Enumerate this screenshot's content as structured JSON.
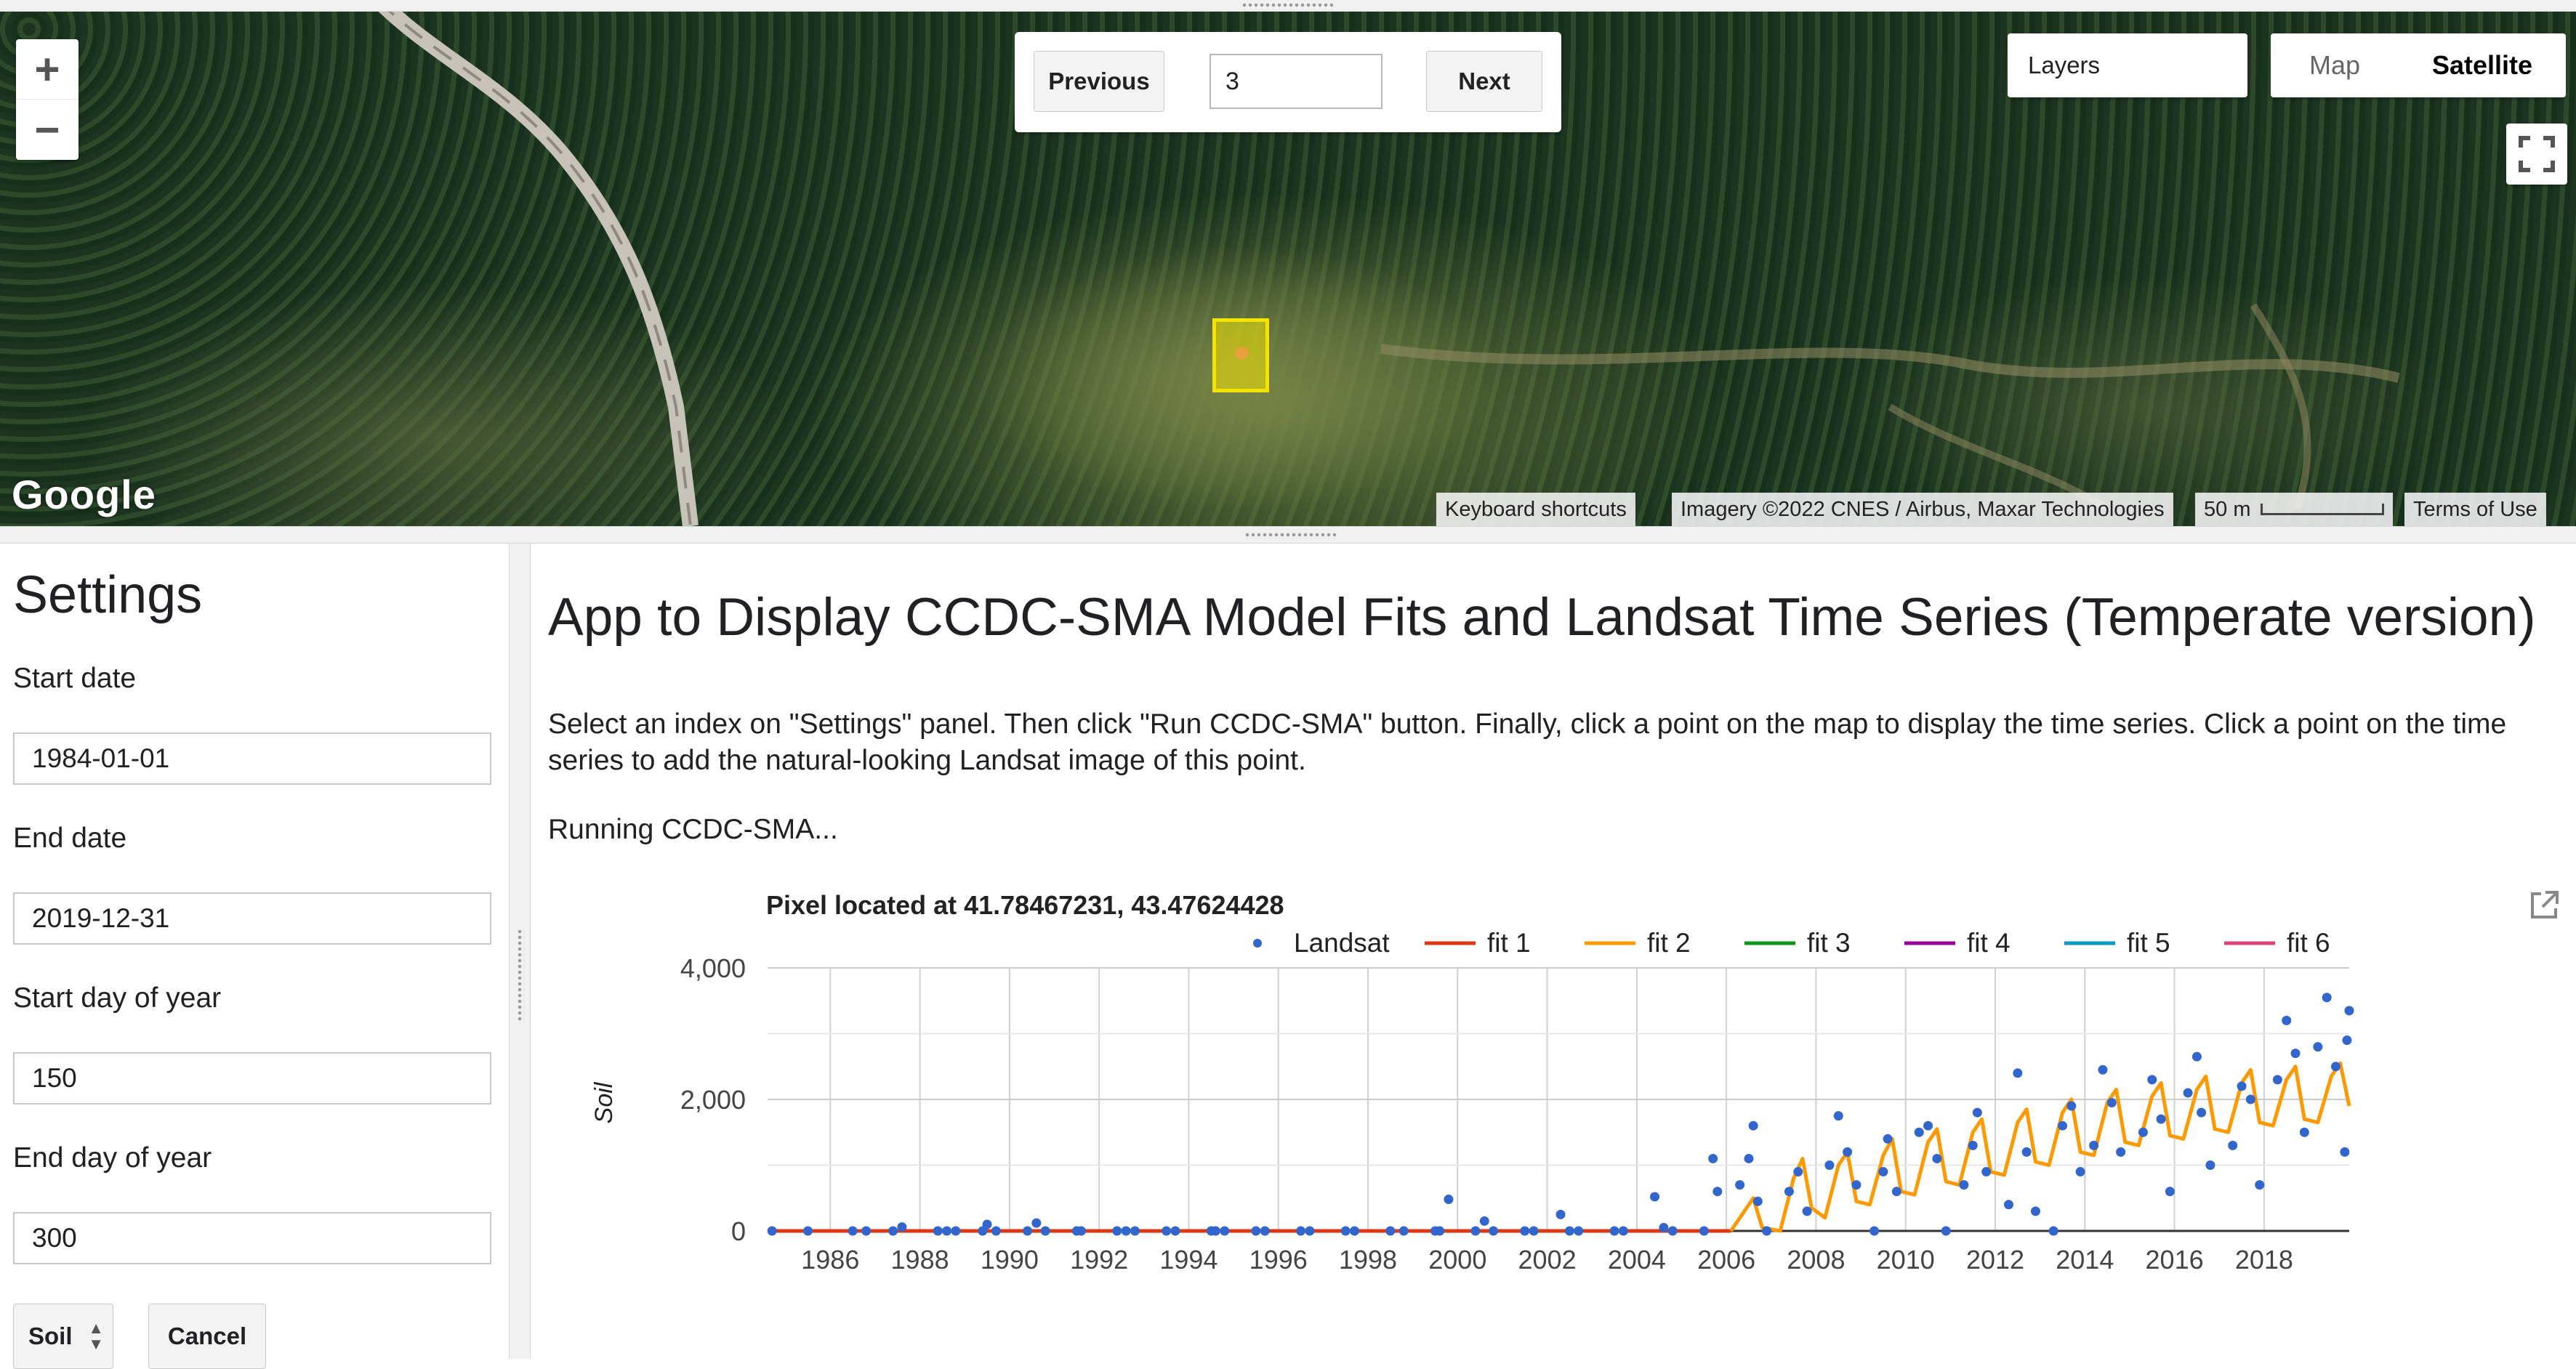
{
  "map": {
    "zoom_in": "+",
    "zoom_out": "−",
    "pager": {
      "previous_label": "Previous",
      "index_value": "3",
      "next_label": "Next"
    },
    "layers_label": "Layers",
    "map_type": {
      "map_label": "Map",
      "satellite_label": "Satellite"
    },
    "google_logo": "Google",
    "attribution": {
      "shortcuts": "Keyboard shortcuts",
      "imagery": "Imagery ©2022 CNES / Airbus, Maxar Technologies",
      "scale": "50 m",
      "terms": "Terms of Use"
    }
  },
  "settings": {
    "title": "Settings",
    "start_date_label": "Start date",
    "start_date_value": "1984-01-01",
    "end_date_label": "End date",
    "end_date_value": "2019-12-31",
    "start_doy_label": "Start day of year",
    "start_doy_value": "150",
    "end_doy_label": "End day of year",
    "end_doy_value": "300",
    "index_select": "Soil",
    "cancel_label": "Cancel"
  },
  "main": {
    "title": "App to Display CCDC-SMA Model Fits and Landsat Time Series (Temperate version)",
    "description": "Select an index on \"Settings\" panel. Then click \"Run CCDC-SMA\" button. Finally, click a point on the map to display the time series. Click a point on the time series to add the natural-looking Landsat image of this point.",
    "status": "Running CCDC-SMA..."
  },
  "chart_data": {
    "type": "scatter",
    "title": "Pixel located at 41.78467231, 43.47624428",
    "xlabel": "",
    "ylabel": "Soil",
    "xlim": [
      1984.6,
      2019.9
    ],
    "ylim": [
      0,
      4000
    ],
    "y_ticks": [
      0,
      2000,
      4000
    ],
    "y_tick_labels": [
      "0",
      "2,000",
      "4,000"
    ],
    "x_ticks": [
      1986,
      1988,
      1990,
      1992,
      1994,
      1996,
      1998,
      2000,
      2002,
      2004,
      2006,
      2008,
      2010,
      2012,
      2014,
      2016,
      2018
    ],
    "legend": [
      {
        "name": "Landsat",
        "color": "#3366cc",
        "marker": "dot"
      },
      {
        "name": "fit 1",
        "color": "#dc3912",
        "marker": "line"
      },
      {
        "name": "fit 2",
        "color": "#ff9900",
        "marker": "line"
      },
      {
        "name": "fit 3",
        "color": "#109618",
        "marker": "line"
      },
      {
        "name": "fit 4",
        "color": "#990099",
        "marker": "line"
      },
      {
        "name": "fit 5",
        "color": "#0099c6",
        "marker": "line"
      },
      {
        "name": "fit 6",
        "color": "#dd4477",
        "marker": "line"
      }
    ],
    "landsat_points": [
      [
        1984.7,
        0
      ],
      [
        1985.5,
        0
      ],
      [
        1986.5,
        0
      ],
      [
        1986.8,
        0
      ],
      [
        1987.4,
        0
      ],
      [
        1987.6,
        60
      ],
      [
        1988.4,
        0
      ],
      [
        1988.6,
        0
      ],
      [
        1988.8,
        0
      ],
      [
        1989.4,
        0
      ],
      [
        1989.5,
        100
      ],
      [
        1989.7,
        0
      ],
      [
        1990.4,
        0
      ],
      [
        1990.6,
        120
      ],
      [
        1990.8,
        0
      ],
      [
        1991.5,
        0
      ],
      [
        1991.6,
        0
      ],
      [
        1992.4,
        0
      ],
      [
        1992.6,
        0
      ],
      [
        1992.8,
        0
      ],
      [
        1993.5,
        0
      ],
      [
        1993.7,
        0
      ],
      [
        1994.5,
        0
      ],
      [
        1994.6,
        0
      ],
      [
        1994.8,
        0
      ],
      [
        1995.5,
        0
      ],
      [
        1995.7,
        0
      ],
      [
        1996.5,
        0
      ],
      [
        1996.7,
        0
      ],
      [
        1997.5,
        0
      ],
      [
        1997.7,
        0
      ],
      [
        1998.5,
        0
      ],
      [
        1998.8,
        0
      ],
      [
        1999.5,
        0
      ],
      [
        1999.6,
        0
      ],
      [
        1999.8,
        480
      ],
      [
        2000.4,
        0
      ],
      [
        2000.6,
        150
      ],
      [
        2000.8,
        0
      ],
      [
        2001.5,
        0
      ],
      [
        2001.7,
        0
      ],
      [
        2002.3,
        250
      ],
      [
        2002.5,
        0
      ],
      [
        2002.7,
        0
      ],
      [
        2003.5,
        0
      ],
      [
        2003.7,
        0
      ],
      [
        2004.4,
        520
      ],
      [
        2004.6,
        50
      ],
      [
        2004.8,
        0
      ],
      [
        2005.5,
        0
      ],
      [
        2005.7,
        1100
      ],
      [
        2005.8,
        600
      ],
      [
        2006.3,
        700
      ],
      [
        2006.5,
        1100
      ],
      [
        2006.6,
        1600
      ],
      [
        2006.7,
        450
      ],
      [
        2006.9,
        0
      ],
      [
        2007.4,
        600
      ],
      [
        2007.6,
        900
      ],
      [
        2007.8,
        300
      ],
      [
        2008.3,
        1000
      ],
      [
        2008.5,
        1750
      ],
      [
        2008.7,
        1200
      ],
      [
        2008.9,
        700
      ],
      [
        2009.3,
        0
      ],
      [
        2009.5,
        900
      ],
      [
        2009.6,
        1400
      ],
      [
        2009.8,
        600
      ],
      [
        2010.3,
        1500
      ],
      [
        2010.5,
        1600
      ],
      [
        2010.7,
        1100
      ],
      [
        2010.9,
        0
      ],
      [
        2011.3,
        700
      ],
      [
        2011.5,
        1300
      ],
      [
        2011.6,
        1800
      ],
      [
        2011.8,
        900
      ],
      [
        2012.3,
        400
      ],
      [
        2012.5,
        2400
      ],
      [
        2012.7,
        1200
      ],
      [
        2012.9,
        300
      ],
      [
        2013.3,
        0
      ],
      [
        2013.5,
        1600
      ],
      [
        2013.7,
        1900
      ],
      [
        2013.9,
        900
      ],
      [
        2014.2,
        1300
      ],
      [
        2014.4,
        2450
      ],
      [
        2014.6,
        1950
      ],
      [
        2014.8,
        1200
      ],
      [
        2015.3,
        1500
      ],
      [
        2015.5,
        2300
      ],
      [
        2015.7,
        1700
      ],
      [
        2015.9,
        600
      ],
      [
        2016.3,
        2100
      ],
      [
        2016.5,
        2650
      ],
      [
        2016.6,
        1800
      ],
      [
        2016.8,
        1000
      ],
      [
        2017.3,
        1300
      ],
      [
        2017.5,
        2200
      ],
      [
        2017.7,
        2000
      ],
      [
        2017.9,
        700
      ],
      [
        2018.3,
        2300
      ],
      [
        2018.5,
        3200
      ],
      [
        2018.7,
        2700
      ],
      [
        2018.9,
        1500
      ],
      [
        2019.2,
        2800
      ],
      [
        2019.4,
        3550
      ],
      [
        2019.6,
        2500
      ],
      [
        2019.8,
        1200
      ],
      [
        2019.85,
        2900
      ],
      [
        2019.9,
        3350
      ]
    ],
    "fit1": [
      [
        1984.6,
        0
      ],
      [
        2006.1,
        0
      ]
    ],
    "fit2": [
      [
        2006.1,
        0
      ],
      [
        2006.4,
        300
      ],
      [
        2006.6,
        500
      ],
      [
        2006.8,
        50
      ],
      [
        2007.2,
        0
      ],
      [
        2007.5,
        800
      ],
      [
        2007.7,
        1100
      ],
      [
        2007.9,
        350
      ],
      [
        2008.2,
        200
      ],
      [
        2008.5,
        1000
      ],
      [
        2008.7,
        1200
      ],
      [
        2008.9,
        450
      ],
      [
        2009.2,
        400
      ],
      [
        2009.5,
        1150
      ],
      [
        2009.7,
        1400
      ],
      [
        2009.9,
        600
      ],
      [
        2010.2,
        550
      ],
      [
        2010.5,
        1350
      ],
      [
        2010.7,
        1550
      ],
      [
        2010.9,
        750
      ],
      [
        2011.2,
        700
      ],
      [
        2011.5,
        1500
      ],
      [
        2011.7,
        1700
      ],
      [
        2011.9,
        900
      ],
      [
        2012.2,
        850
      ],
      [
        2012.5,
        1650
      ],
      [
        2012.7,
        1850
      ],
      [
        2012.9,
        1050
      ],
      [
        2013.2,
        1000
      ],
      [
        2013.5,
        1800
      ],
      [
        2013.7,
        2000
      ],
      [
        2013.9,
        1200
      ],
      [
        2014.2,
        1150
      ],
      [
        2014.5,
        1950
      ],
      [
        2014.7,
        2150
      ],
      [
        2014.9,
        1350
      ],
      [
        2015.2,
        1300
      ],
      [
        2015.5,
        2050
      ],
      [
        2015.7,
        2250
      ],
      [
        2015.9,
        1450
      ],
      [
        2016.2,
        1400
      ],
      [
        2016.5,
        2150
      ],
      [
        2016.7,
        2350
      ],
      [
        2016.9,
        1550
      ],
      [
        2017.2,
        1500
      ],
      [
        2017.5,
        2250
      ],
      [
        2017.7,
        2450
      ],
      [
        2017.9,
        1650
      ],
      [
        2018.2,
        1600
      ],
      [
        2018.5,
        2300
      ],
      [
        2018.7,
        2500
      ],
      [
        2018.9,
        1700
      ],
      [
        2019.2,
        1650
      ],
      [
        2019.5,
        2350
      ],
      [
        2019.7,
        2550
      ],
      [
        2019.9,
        1900
      ]
    ]
  }
}
